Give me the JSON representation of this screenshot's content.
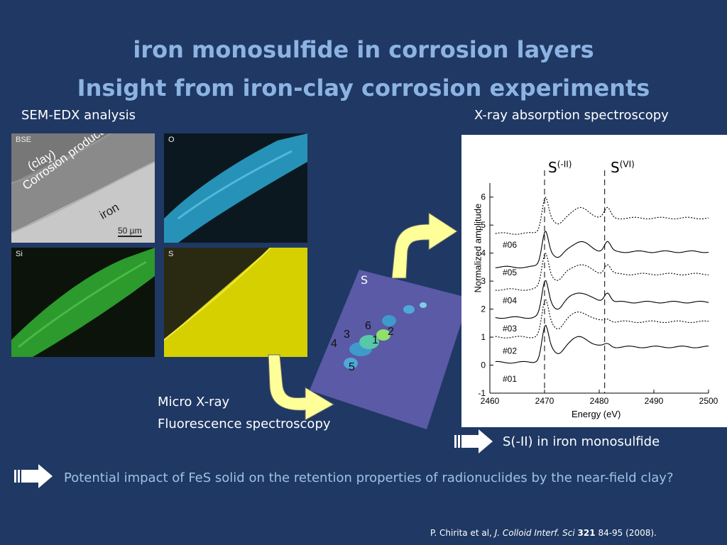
{
  "title": {
    "line1": "iron monosulfide in corrosion layers",
    "line2": "Insight from iron-clay corrosion experiments"
  },
  "sem": {
    "heading": "SEM-EDX analysis",
    "panels": {
      "bse": {
        "tag": "BSE",
        "clay": "(clay)",
        "corrosion": "Corrosion products",
        "iron": "iron",
        "scale": "50 µm"
      },
      "o": {
        "tag": "O"
      },
      "si": {
        "tag": "Si"
      },
      "s": {
        "tag": "S"
      }
    }
  },
  "xrf": {
    "map_tag": "S",
    "points": [
      "1",
      "2",
      "3",
      "4",
      "5",
      "6"
    ],
    "label_line1": "Micro X-ray",
    "label_line2": "Fluorescence spectroscopy"
  },
  "xas": {
    "heading": "X-ray absorption spectroscopy",
    "peak1": "S",
    "peak1_sup": "(-II)",
    "peak2": "S",
    "peak2_sup": "(VI)",
    "conclusion": "S(-II) in iron monosulfide"
  },
  "chart_data": {
    "type": "line",
    "xlabel": "Energy (eV)",
    "ylabel": "Normalized amplitude",
    "xlim": [
      2460,
      2500
    ],
    "ylim": [
      -1,
      6.5
    ],
    "xticks": [
      "2460",
      "2470",
      "2480",
      "2490",
      "2500"
    ],
    "yticks": [
      "-1",
      "0",
      "1",
      "2",
      "3",
      "4",
      "5",
      "6"
    ],
    "series_labels": [
      "#01",
      "#02",
      "#03",
      "#04",
      "#05",
      "#06"
    ]
  },
  "bottom": {
    "question": "Potential impact of FeS solid on the retention properties of radionuclides by the near-field clay?",
    "ref_authors": "P. Chirita et al,",
    "ref_journal": "J. Colloid Interf. Sci",
    "ref_volume": "321",
    "ref_rest": "84-95 (2008)."
  },
  "colors": {
    "background": "#1f3864",
    "title": "#8db3e2",
    "arrow_fill": "#ffff99",
    "bottom_text": "#9dc3e6"
  }
}
